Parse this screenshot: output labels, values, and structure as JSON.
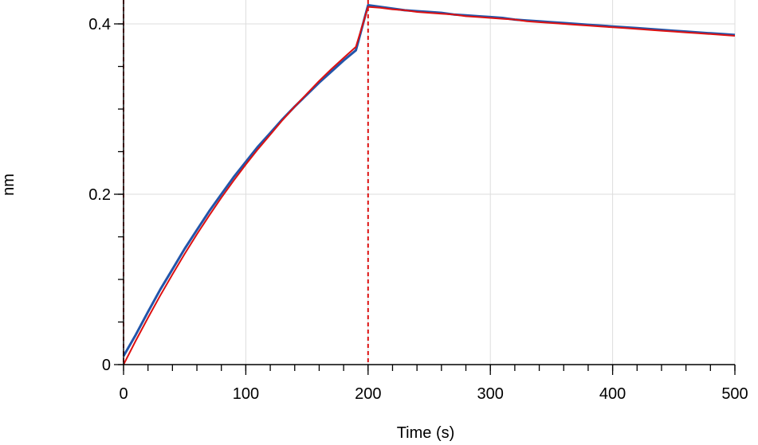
{
  "chart_data": {
    "type": "line",
    "title": "",
    "xlabel": "Time (s)",
    "ylabel": "nm",
    "xlim": [
      0,
      500
    ],
    "ylim": [
      0,
      0.42
    ],
    "x_ticks": [
      0,
      100,
      200,
      300,
      400,
      500
    ],
    "x_tick_labels": [
      "0",
      "100",
      "200",
      "300",
      "400",
      "500"
    ],
    "y_ticks": [
      0,
      0.2,
      0.4
    ],
    "y_tick_labels": [
      "0",
      "0.2",
      "0.4"
    ],
    "grid": true,
    "colors": {
      "measured": "#2255aa",
      "fit": "#dd1111",
      "marker": "#dd1111",
      "grid": "#dddddd"
    },
    "vertical_markers": [
      0,
      200
    ],
    "series": [
      {
        "x": [
          0,
          10,
          20,
          30,
          40,
          50,
          60,
          70,
          80,
          90,
          100,
          110,
          120,
          130,
          140,
          150,
          160,
          170,
          180,
          190,
          200,
          210,
          220,
          230,
          240,
          250,
          260,
          270,
          280,
          290,
          300,
          310,
          320,
          330,
          340,
          350,
          360,
          370,
          380,
          390,
          400,
          410,
          420,
          430,
          440,
          450,
          460,
          470,
          480,
          490,
          500
        ],
        "values": [
          0.01,
          0.035,
          0.062,
          0.088,
          0.112,
          0.136,
          0.158,
          0.18,
          0.2,
          0.22,
          0.238,
          0.256,
          0.272,
          0.288,
          0.303,
          0.317,
          0.331,
          0.344,
          0.357,
          0.369,
          0.422,
          0.42,
          0.418,
          0.416,
          0.415,
          0.414,
          0.413,
          0.411,
          0.41,
          0.409,
          0.408,
          0.407,
          0.405,
          0.404,
          0.403,
          0.402,
          0.401,
          0.4,
          0.399,
          0.398,
          0.397,
          0.396,
          0.395,
          0.394,
          0.393,
          0.392,
          0.391,
          0.39,
          0.389,
          0.388,
          0.387
        ]
      },
      {
        "x": [
          0,
          10,
          20,
          30,
          40,
          50,
          60,
          70,
          80,
          90,
          100,
          110,
          120,
          130,
          140,
          150,
          160,
          170,
          180,
          190,
          200,
          210,
          220,
          230,
          240,
          250,
          260,
          270,
          280,
          290,
          300,
          310,
          320,
          330,
          340,
          350,
          360,
          370,
          380,
          390,
          400,
          410,
          420,
          430,
          440,
          450,
          460,
          470,
          480,
          490,
          500
        ],
        "values": [
          0.0,
          0.028,
          0.055,
          0.081,
          0.106,
          0.13,
          0.153,
          0.175,
          0.196,
          0.216,
          0.235,
          0.253,
          0.27,
          0.287,
          0.303,
          0.318,
          0.333,
          0.347,
          0.36,
          0.373,
          0.42,
          0.419,
          0.417,
          0.416,
          0.414,
          0.413,
          0.412,
          0.411,
          0.409,
          0.408,
          0.407,
          0.406,
          0.405,
          0.403,
          0.402,
          0.401,
          0.4,
          0.399,
          0.398,
          0.397,
          0.396,
          0.395,
          0.394,
          0.393,
          0.392,
          0.391,
          0.39,
          0.389,
          0.388,
          0.387,
          0.386
        ]
      }
    ]
  }
}
